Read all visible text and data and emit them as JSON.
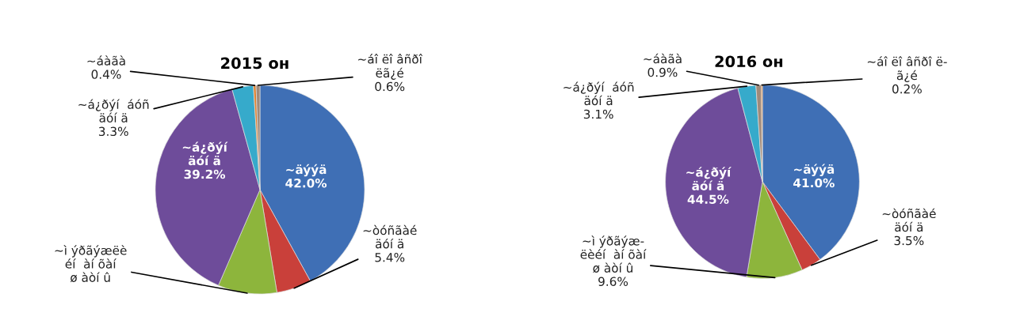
{
  "chart_data": [
    {
      "type": "pie",
      "title": "2015 он",
      "categories": [
        "~äýýä",
        "~òóñãàé\näóí ä",
        "~ì ýðãýæëè\néí  àí õàí\nø àòí û",
        "~á¿ðýí\näóí ä",
        "~á¿ðýí  áóñ\näóí ä",
        "~áàãà",
        "~áî ëî âñðî\nëã¿é"
      ],
      "values": [
        42.0,
        5.4,
        9.1,
        39.2,
        3.3,
        0.4,
        0.6
      ],
      "value_labels": [
        "42.0%",
        "5.4%",
        null,
        "39.2%",
        "3.3%",
        "0.4%",
        "0.6%"
      ],
      "colors": [
        "#3f6fb5",
        "#c9403a",
        "#8db53c",
        "#6e4c9a",
        "#36aacb",
        "#e0812d",
        "#a08a7a"
      ]
    },
    {
      "type": "pie",
      "title": "2016 он",
      "categories": [
        "~äýýä",
        "~òóñãàé\näóí ä",
        "~ì ýðãýæ-\nëèéí  àí õàí\nø àòí û",
        "~á¿ðýí\näóí ä",
        "~á¿ðýí  áóñ\näóí ä",
        "~áàãà",
        "~áî ëî âñðî ë-\nã¿é"
      ],
      "values": [
        41.0,
        3.5,
        9.6,
        44.5,
        3.1,
        0.9,
        0.2
      ],
      "value_labels": [
        "41.0%",
        "3.5%",
        "9.6%",
        "44.5%",
        "3.1%",
        "0.9%",
        "0.2%"
      ],
      "colors": [
        "#3f6fb5",
        "#c9403a",
        "#8db53c",
        "#6e4c9a",
        "#36aacb",
        "#a08a7a",
        "#e0812d"
      ]
    }
  ]
}
